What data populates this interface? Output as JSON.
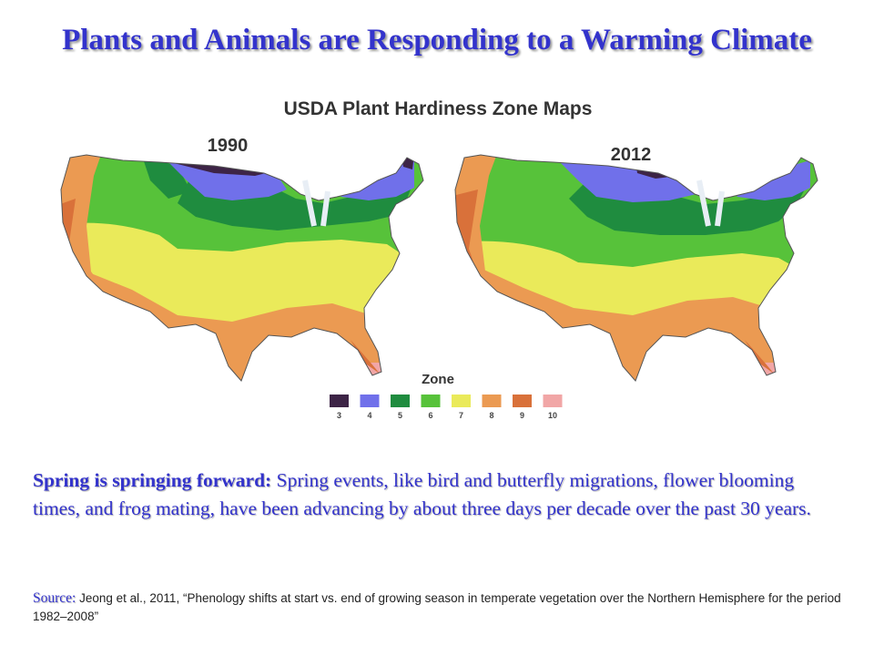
{
  "slide": {
    "title": "Plants and Animals are Responding to a Warming Climate"
  },
  "figure": {
    "header": "USDA Plant Hardiness Zone Maps",
    "maps": [
      {
        "year": "1990"
      },
      {
        "year": "2012"
      }
    ],
    "legend": {
      "title": "Zone",
      "zones": [
        {
          "label": "3",
          "color": "#3d2446"
        },
        {
          "label": "4",
          "color": "#7070ea"
        },
        {
          "label": "5",
          "color": "#1f8c3f"
        },
        {
          "label": "6",
          "color": "#57c23a"
        },
        {
          "label": "7",
          "color": "#eaea5a"
        },
        {
          "label": "8",
          "color": "#eb9a52"
        },
        {
          "label": "9",
          "color": "#d9713a"
        },
        {
          "label": "10",
          "color": "#f1a6a6"
        }
      ]
    }
  },
  "body": {
    "lead": "Spring is springing forward:",
    "text": " Spring events, like bird and butterfly migrations, flower blooming times, and frog mating, have been advancing by about three days per decade over the past 30 years."
  },
  "source": {
    "label": "Source:",
    "text": " Jeong et al., 2011, “Phenology shifts at start vs. end of growing season in temperate vegetation over the Northern Hemisphere for the period 1982–2008”"
  }
}
